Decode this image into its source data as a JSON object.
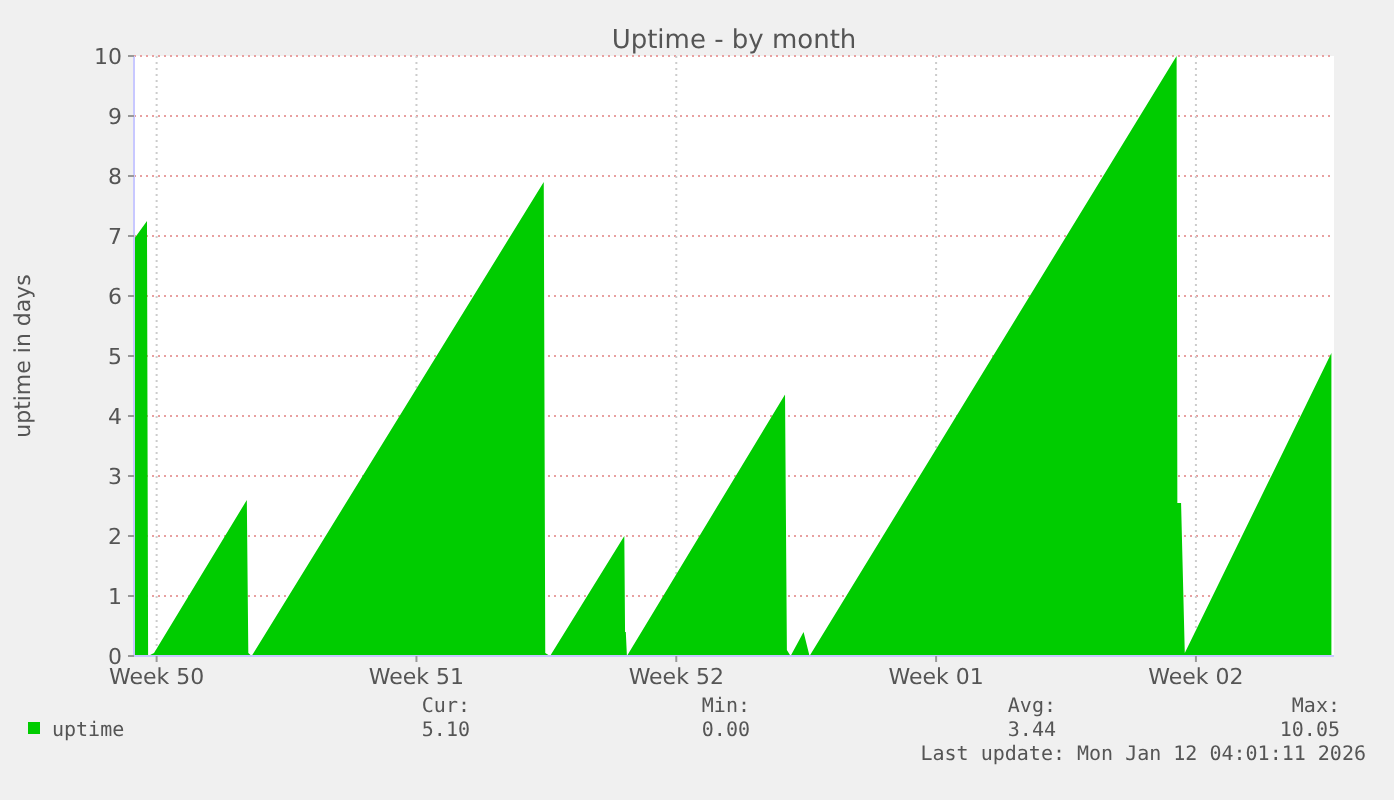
{
  "chart_data": {
    "type": "area",
    "title": "Uptime - by month",
    "ylabel": "uptime in days",
    "x": [
      "2025-12-10T21:22",
      "2025-12-11T05:46",
      "2025-12-11T06:29",
      "2025-12-11T10:19",
      "2025-12-13T22:19",
      "2025-12-13T23:17",
      "2025-12-14T01:26",
      "2025-12-21T22:19",
      "2025-12-21T23:17",
      "2025-12-22T02:24",
      "2025-12-24T02:24",
      "2025-12-24T02:53",
      "2025-12-24T03:22",
      "2025-12-24T04:05",
      "2025-12-28T10:19",
      "2025-12-28T11:31",
      "2025-12-28T13:55",
      "2025-12-28T22:19",
      "2025-12-29T02:10",
      "2026-01-07T23:31",
      "2026-01-08T00:00",
      "2026-01-08T02:24",
      "2026-01-08T04:48",
      "2026-01-12T03:36"
    ],
    "series": [
      {
        "name": "uptime",
        "color": "#00cc00",
        "values": [
          6.95,
          7.25,
          0,
          0.05,
          2.6,
          0.05,
          0,
          7.9,
          0.05,
          0,
          2.0,
          0.4,
          0.4,
          0,
          4.36,
          0.1,
          0,
          0.4,
          0,
          10.0,
          2.55,
          2.55,
          0.05,
          5.05
        ]
      }
    ],
    "xlim": [
      "2025-12-10T21:22",
      "2026-01-12T05:17"
    ],
    "xticks": [
      {
        "value": "2025-12-11T12:00",
        "label": "Week 50"
      },
      {
        "value": "2025-12-18T12:00",
        "label": "Week 51"
      },
      {
        "value": "2025-12-25T12:00",
        "label": "Week 52"
      },
      {
        "value": "2026-01-01T12:00",
        "label": "Week 01"
      },
      {
        "value": "2026-01-08T12:00",
        "label": "Week 02"
      }
    ],
    "ylim": [
      0,
      10
    ],
    "yticks": [
      0,
      1,
      2,
      3,
      4,
      5,
      6,
      7,
      8,
      9,
      10
    ],
    "grid": true,
    "legend": "bottom left",
    "annotations": [
      "Cur:",
      "5.10",
      "Min:",
      "0.00",
      "Avg:",
      "3.44",
      "Max:",
      "10.05",
      "Last update: Mon Jan 12 04:01:11 2026"
    ]
  }
}
